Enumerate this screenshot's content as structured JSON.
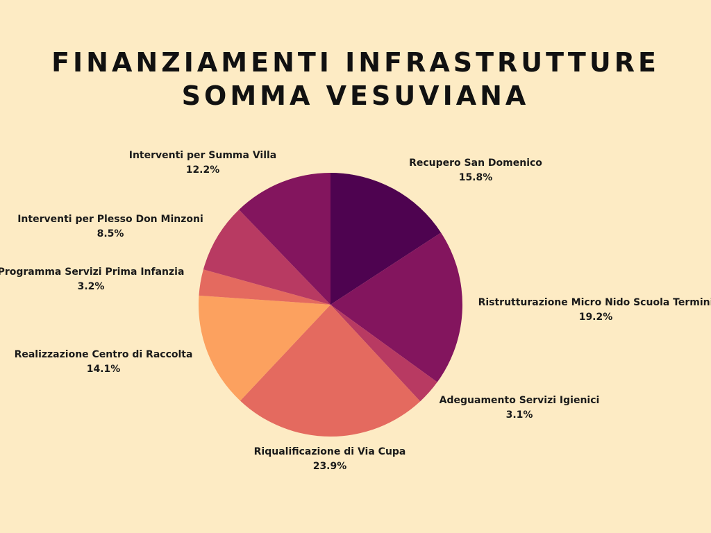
{
  "page": {
    "background": "#fdebc4",
    "title_lines": [
      "FINANZIAMENTI INFRASTRUTTURE",
      "SOMMA VESUVIANA"
    ]
  },
  "chart_data": {
    "type": "pie",
    "title": "FINANZIAMENTI INFRASTRUTTURE SOMMA VESUVIANA",
    "start": "top",
    "direction": "clockwise",
    "slices": [
      {
        "label": "Recupero San Domenico",
        "value": 15.8,
        "value_label": "15.8%",
        "color": "#4e0350"
      },
      {
        "label": "Ristrutturazione Micro Nido Scuola Termini",
        "value": 19.2,
        "value_label": "19.2%",
        "color": "#83155e"
      },
      {
        "label": "Adeguamento Servizi Igienici",
        "value": 3.1,
        "value_label": "3.1%",
        "color": "#b83a62"
      },
      {
        "label": "Riqualificazione di Via Cupa",
        "value": 23.9,
        "value_label": "23.9%",
        "color": "#e46a5f"
      },
      {
        "label": "Realizzazione Centro di Raccolta",
        "value": 14.1,
        "value_label": "14.1%",
        "color": "#fca15f"
      },
      {
        "label": "Programma Servizi Prima Infanzia",
        "value": 3.2,
        "value_label": "3.2%",
        "color": "#e46a5f"
      },
      {
        "label": "Interventi per Plesso Don Minzoni",
        "value": 8.5,
        "value_label": "8.5%",
        "color": "#b83a62"
      },
      {
        "label": "Interventi per Summa Villa",
        "value": 12.2,
        "value_label": "12.2%",
        "color": "#83155e"
      }
    ]
  }
}
